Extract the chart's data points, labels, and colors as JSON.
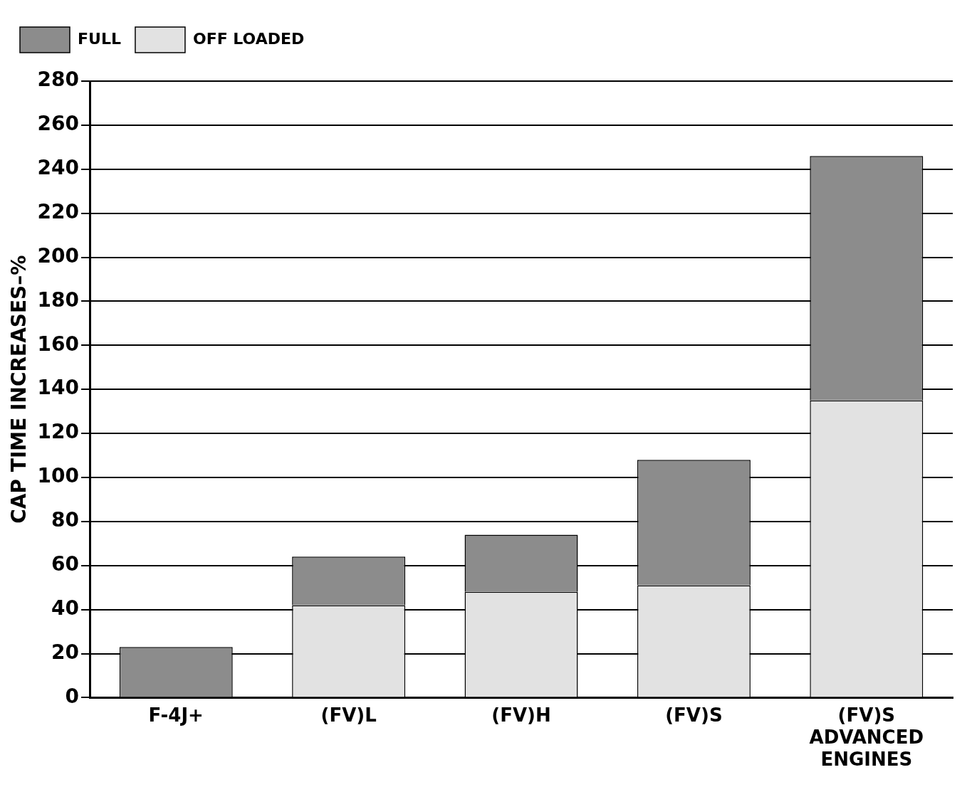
{
  "chart_data": {
    "type": "bar",
    "ylabel": "CAP TIME INCREASES–%",
    "categories": [
      "F-4J+",
      "(FV)L",
      "(FV)H",
      "(FV)S",
      "(FV)S\nADVANCED\nENGINES"
    ],
    "stacked": true,
    "series": [
      {
        "name": "OFF LOADED",
        "color": "#e2e2e2",
        "values": [
          null,
          42,
          48,
          51,
          135
        ]
      },
      {
        "name": "FULL",
        "color": "#8c8c8c",
        "values": [
          23,
          22,
          26,
          57,
          111
        ]
      }
    ],
    "ylim": [
      0,
      280
    ],
    "yticks": [
      0,
      20,
      40,
      60,
      80,
      100,
      120,
      140,
      160,
      180,
      200,
      220,
      240,
      260,
      280
    ],
    "grid": "y",
    "legend": "top left"
  }
}
